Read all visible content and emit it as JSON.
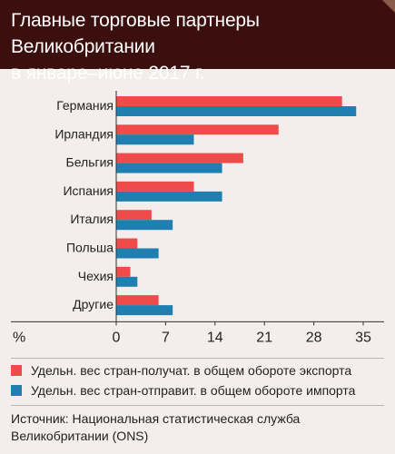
{
  "title_line1": "Главные торговые партнеры Великобритании",
  "title_line2": "в январе–июне 2017 г.",
  "source_line1": "Источник: Национальная статистическая служба",
  "source_line2": "Великобритании (ONS)",
  "colors": {
    "export": "#f04b4b",
    "import": "#1e7fb0",
    "title_bg": "#3a0f0e",
    "background": "#f3eeec"
  },
  "chart_data": {
    "type": "bar",
    "orientation": "horizontal",
    "categories": [
      "Германия",
      "Ирландия",
      "Бельгия",
      "Испания",
      "Италия",
      "Польша",
      "Чехия",
      "Другие"
    ],
    "series": [
      {
        "name": "Удельн. вес стран-получат. в общем обороте экспорта",
        "color": "#f04b4b",
        "values": [
          32,
          23,
          18,
          11,
          5,
          3,
          2,
          6
        ]
      },
      {
        "name": "Удельн. вес стран-отправит. в общем обороте импорта",
        "color": "#1e7fb0",
        "values": [
          34,
          11,
          15,
          15,
          8,
          6,
          3,
          8
        ]
      }
    ],
    "xlabel": "%",
    "xlim": [
      0,
      35
    ],
    "xticks": [
      "0",
      "7",
      "14",
      "21",
      "28",
      "35"
    ],
    "grid": false,
    "legend_position": "bottom"
  }
}
